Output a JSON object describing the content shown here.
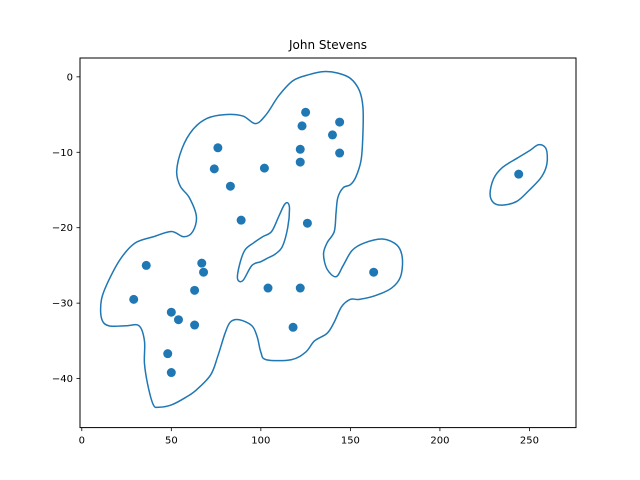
{
  "chart_data": {
    "type": "scatter",
    "title": "John Stevens",
    "xlabel": "",
    "ylabel": "",
    "xlim": [
      -1,
      276
    ],
    "ylim": [
      -46.5,
      2.5
    ],
    "xticks": [
      0,
      50,
      100,
      150,
      200,
      250
    ],
    "xtick_labels": [
      "0",
      "50",
      "100",
      "150",
      "200",
      "250"
    ],
    "yticks": [
      0,
      -10,
      -20,
      -30,
      -40
    ],
    "ytick_labels": [
      "0",
      "−10",
      "−20",
      "−30",
      "−40"
    ],
    "grid": false,
    "legend": "none",
    "point_color": "#1f77b4",
    "points": [
      {
        "x": 125,
        "y": -4.7
      },
      {
        "x": 144,
        "y": -6.0
      },
      {
        "x": 123,
        "y": -6.5
      },
      {
        "x": 140,
        "y": -7.7
      },
      {
        "x": 76,
        "y": -9.4
      },
      {
        "x": 122,
        "y": -9.6
      },
      {
        "x": 144,
        "y": -10.1
      },
      {
        "x": 122,
        "y": -11.3
      },
      {
        "x": 102,
        "y": -12.1
      },
      {
        "x": 74,
        "y": -12.2
      },
      {
        "x": 244,
        "y": -12.9
      },
      {
        "x": 83,
        "y": -14.5
      },
      {
        "x": 89,
        "y": -19.0
      },
      {
        "x": 126,
        "y": -19.4
      },
      {
        "x": 67,
        "y": -24.7
      },
      {
        "x": 36,
        "y": -25.0
      },
      {
        "x": 68,
        "y": -25.9
      },
      {
        "x": 163,
        "y": -25.9
      },
      {
        "x": 104,
        "y": -28.0
      },
      {
        "x": 122,
        "y": -28.0
      },
      {
        "x": 63,
        "y": -28.3
      },
      {
        "x": 29,
        "y": -29.5
      },
      {
        "x": 50,
        "y": -31.2
      },
      {
        "x": 54,
        "y": -32.2
      },
      {
        "x": 63,
        "y": -32.9
      },
      {
        "x": 118,
        "y": -33.2
      },
      {
        "x": 48,
        "y": -36.7
      },
      {
        "x": 50,
        "y": -39.2
      }
    ],
    "contours": [
      {
        "name": "",
        "closed": true,
        "points": [
          [
            40,
            -21.2
          ],
          [
            50,
            -20.5
          ],
          [
            57,
            -21.2
          ],
          [
            62,
            -20.5
          ],
          [
            64,
            -18.5
          ],
          [
            60,
            -16
          ],
          [
            55,
            -14.5
          ],
          [
            53,
            -12.5
          ],
          [
            56,
            -9.5
          ],
          [
            62,
            -7
          ],
          [
            70,
            -5.5
          ],
          [
            80,
            -5
          ],
          [
            90,
            -5.2
          ],
          [
            97,
            -6.2
          ],
          [
            103,
            -5
          ],
          [
            110,
            -2.5
          ],
          [
            118,
            -0.5
          ],
          [
            127,
            0.3
          ],
          [
            135,
            0.7
          ],
          [
            143,
            0.5
          ],
          [
            150,
            -0.2
          ],
          [
            155,
            -1.8
          ],
          [
            157,
            -4
          ],
          [
            157,
            -7.5
          ],
          [
            156,
            -11
          ],
          [
            153,
            -13.3
          ],
          [
            150,
            -14.3
          ],
          [
            146,
            -14.7
          ],
          [
            143,
            -16
          ],
          [
            142,
            -18
          ],
          [
            141,
            -20.5
          ],
          [
            137,
            -22
          ],
          [
            135,
            -23.5
          ],
          [
            137,
            -25.5
          ],
          [
            142,
            -26.5
          ],
          [
            146,
            -25
          ],
          [
            151,
            -23
          ],
          [
            158,
            -22
          ],
          [
            168,
            -21.5
          ],
          [
            176,
            -22.3
          ],
          [
            179,
            -24
          ],
          [
            178,
            -26.5
          ],
          [
            173,
            -28
          ],
          [
            164,
            -29
          ],
          [
            155,
            -29.5
          ],
          [
            150,
            -29.5
          ],
          [
            145,
            -30.5
          ],
          [
            141,
            -32.5
          ],
          [
            137,
            -34
          ],
          [
            130,
            -35
          ],
          [
            125,
            -36.5
          ],
          [
            117,
            -37.5
          ],
          [
            103,
            -37.5
          ],
          [
            100,
            -36.5
          ],
          [
            98,
            -34.5
          ],
          [
            95,
            -33
          ],
          [
            88,
            -32.2
          ],
          [
            83,
            -32.5
          ],
          [
            80,
            -34
          ],
          [
            76,
            -37
          ],
          [
            72,
            -39.5
          ],
          [
            64,
            -41.5
          ],
          [
            58,
            -42.5
          ],
          [
            50,
            -43.5
          ],
          [
            43,
            -43.8
          ],
          [
            40,
            -43.5
          ],
          [
            37,
            -41
          ],
          [
            35,
            -38
          ],
          [
            35,
            -35
          ],
          [
            32,
            -33
          ],
          [
            25,
            -33
          ],
          [
            15,
            -33
          ],
          [
            11,
            -32
          ],
          [
            11,
            -29.5
          ],
          [
            15,
            -27
          ],
          [
            22,
            -24
          ],
          [
            30,
            -22
          ]
        ]
      },
      {
        "name": "",
        "closed": true,
        "points": [
          [
            87,
            -26.8
          ],
          [
            88,
            -25
          ],
          [
            91,
            -23
          ],
          [
            96,
            -22
          ],
          [
            101,
            -21.2
          ],
          [
            106,
            -20.5
          ],
          [
            110,
            -18.5
          ],
          [
            113,
            -17
          ],
          [
            115,
            -16.7
          ],
          [
            116,
            -17.5
          ],
          [
            115,
            -20
          ],
          [
            112,
            -22.5
          ],
          [
            108,
            -23.5
          ],
          [
            104,
            -24
          ],
          [
            100,
            -24.5
          ],
          [
            95,
            -25
          ],
          [
            90,
            -27
          ]
        ]
      },
      {
        "name": "",
        "closed": true,
        "points": [
          [
            228,
            -15.5
          ],
          [
            230,
            -13.5
          ],
          [
            235,
            -12
          ],
          [
            243,
            -10.8
          ],
          [
            250,
            -9.8
          ],
          [
            255,
            -9
          ],
          [
            259,
            -9.4
          ],
          [
            260,
            -10.8
          ],
          [
            259,
            -12.2
          ],
          [
            256,
            -13.5
          ],
          [
            250,
            -15
          ],
          [
            243,
            -16.5
          ],
          [
            235,
            -17
          ],
          [
            230,
            -16.7
          ]
        ]
      }
    ],
    "contour_color": "#1f77b4"
  }
}
